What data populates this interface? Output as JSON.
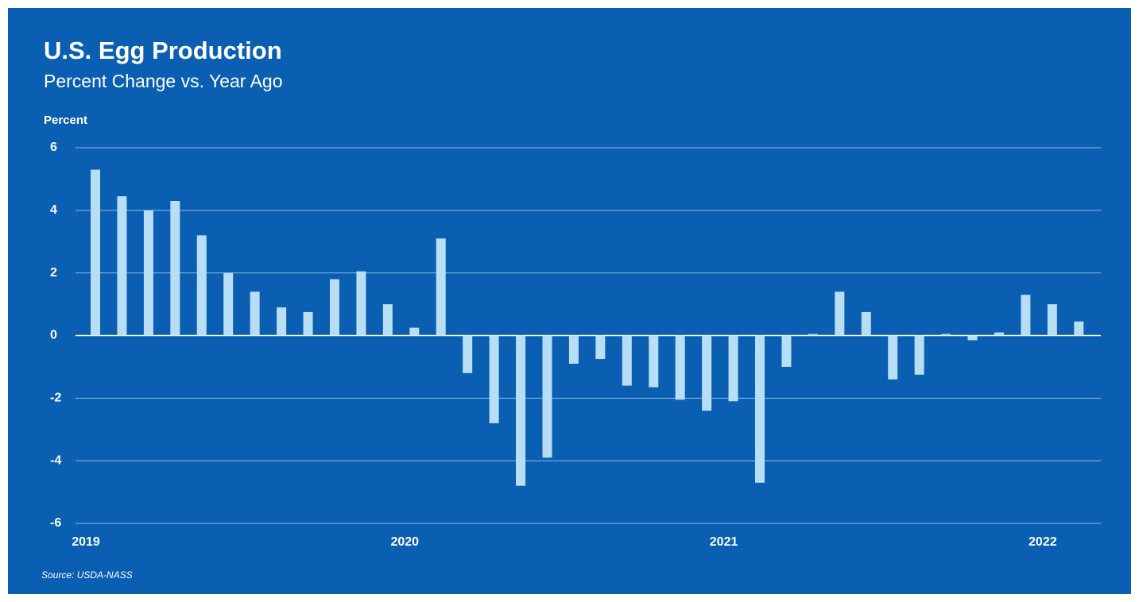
{
  "chart_data": {
    "type": "bar",
    "title": "U.S. Egg Production",
    "subtitle": "Percent Change vs. Year Ago",
    "y_axis_label": "Percent",
    "source": "Source: USDA-NASS",
    "categories": [
      "2019",
      null,
      null,
      null,
      null,
      null,
      null,
      null,
      null,
      null,
      null,
      null,
      "2020",
      null,
      null,
      null,
      null,
      null,
      null,
      null,
      null,
      null,
      null,
      null,
      "2021",
      null,
      null,
      null,
      null,
      null,
      null,
      null,
      null,
      null,
      null,
      null,
      "2022",
      null
    ],
    "values": [
      5.3,
      4.45,
      4.0,
      4.3,
      3.2,
      2.0,
      1.4,
      0.9,
      0.75,
      1.8,
      2.05,
      1.0,
      0.25,
      3.1,
      -1.2,
      -2.8,
      -4.8,
      -3.9,
      -0.9,
      -0.75,
      -1.6,
      -1.65,
      -2.05,
      -2.4,
      -2.1,
      -4.7,
      -1.0,
      0.05,
      1.4,
      0.75,
      -1.4,
      -1.25,
      0.05,
      -0.15,
      0.1,
      1.3,
      1.0,
      0.45
    ],
    "color": "#b8def5",
    "ylim": [
      -6,
      6
    ],
    "yticks": [
      6,
      4,
      2,
      0,
      -2,
      -4,
      -6
    ],
    "grid": true
  }
}
